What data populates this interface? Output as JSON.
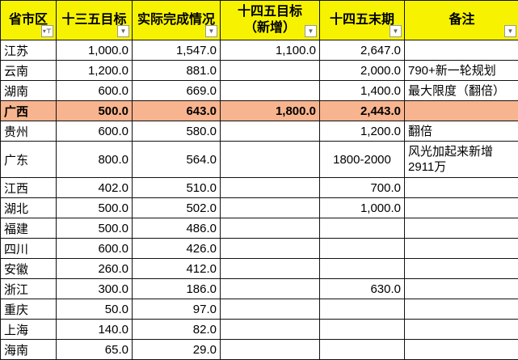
{
  "columns": [
    "省市区",
    "十三五目标",
    "实际完成情况",
    "十四五目标（新增）",
    "十四五末期",
    "备注"
  ],
  "header_lines": {
    "c3a": "十四五目标",
    "c3b": "（新增）"
  },
  "highlight_color": "#f8b48e",
  "header_color": "#f7f300",
  "rows": [
    [
      "江苏",
      "1,000.0",
      "1,547.0",
      "1,100.0",
      "2,647.0",
      ""
    ],
    [
      "云南",
      "1,200.0",
      "881.0",
      "",
      "2,000.0",
      "790+新一轮规划"
    ],
    [
      "湖南",
      "600.0",
      "669.0",
      "",
      "1,400.0",
      "最大限度（翻倍）"
    ],
    [
      "广西",
      "500.0",
      "643.0",
      "1,800.0",
      "2,443.0",
      ""
    ],
    [
      "贵州",
      "600.0",
      "580.0",
      "",
      "1,200.0",
      "翻倍"
    ],
    [
      "广东",
      "800.0",
      "564.0",
      "",
      "1800-2000",
      "风光加起来新增2911万"
    ],
    [
      "江西",
      "402.0",
      "510.0",
      "",
      "700.0",
      ""
    ],
    [
      "湖北",
      "500.0",
      "502.0",
      "",
      "1,000.0",
      ""
    ],
    [
      "福建",
      "500.0",
      "486.0",
      "",
      "",
      ""
    ],
    [
      "四川",
      "600.0",
      "426.0",
      "",
      "",
      ""
    ],
    [
      "安徽",
      "260.0",
      "412.0",
      "",
      "",
      ""
    ],
    [
      "浙江",
      "300.0",
      "186.0",
      "",
      "630.0",
      ""
    ],
    [
      "重庆",
      "50.0",
      "97.0",
      "",
      "",
      ""
    ],
    [
      "上海",
      "140.0",
      "82.0",
      "",
      "",
      ""
    ],
    [
      "海南",
      "65.0",
      "29.0",
      "",
      "",
      ""
    ]
  ]
}
